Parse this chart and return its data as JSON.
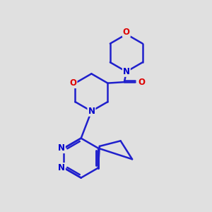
{
  "background_color": "#e0e0e0",
  "bond_color": "#2020cc",
  "heteroatom_O_color": "#dd0000",
  "heteroatom_N_color": "#0000cc",
  "line_width": 1.8,
  "fig_size": [
    3.0,
    3.0
  ],
  "dpi": 100,
  "xlim": [
    0,
    10
  ],
  "ylim": [
    0,
    10
  ]
}
